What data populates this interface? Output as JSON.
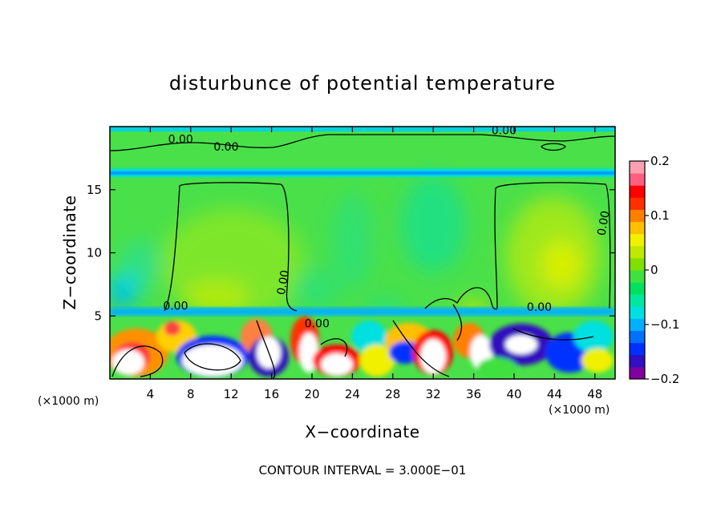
{
  "chart_data": {
    "type": "heatmap",
    "title": "disturbunce of potential temperature",
    "xlabel": "X−coordinate",
    "ylabel": "Z−coordinate",
    "x_unit_left": "(×1000 m)",
    "x_unit_right": "(×1000 m)",
    "xlim": [
      0,
      50
    ],
    "ylim": [
      0,
      20
    ],
    "x_ticks": [
      4,
      8,
      12,
      16,
      20,
      24,
      28,
      32,
      36,
      40,
      44,
      48
    ],
    "y_ticks": [
      5,
      10,
      15
    ],
    "colorbar": {
      "min": -0.2,
      "max": 0.2,
      "ticks": [
        {
          "value": 0.2,
          "label": "0.2"
        },
        {
          "value": 0.1,
          "label": "0.1"
        },
        {
          "value": 0,
          "label": "0"
        },
        {
          "value": -0.1,
          "label": "−0.1"
        },
        {
          "value": -0.2,
          "label": "−0.2"
        }
      ],
      "colors": [
        "#8000a0",
        "#3010c0",
        "#0030ff",
        "#0070ff",
        "#00b0ff",
        "#00e0e0",
        "#00e8a0",
        "#00e060",
        "#40e040",
        "#80e000",
        "#c0e800",
        "#f0f000",
        "#ffc000",
        "#ff8000",
        "#ff3000",
        "#ff0000",
        "#ff6080",
        "#ffa0b0"
      ]
    },
    "contour_labels": [
      {
        "x": 7,
        "z": 18.7,
        "text": "0.00"
      },
      {
        "x": 11.5,
        "z": 18.1,
        "text": "0.00"
      },
      {
        "x": 17.5,
        "z": 7.6,
        "text": "0.00",
        "rotate": true
      },
      {
        "x": 6.5,
        "z": 5.5,
        "text": "0.00"
      },
      {
        "x": 20.5,
        "z": 4.1,
        "text": "0.00"
      },
      {
        "x": 39,
        "z": 19.4,
        "text": "0.00"
      },
      {
        "x": 49.2,
        "z": 12.3,
        "text": "0.00",
        "rotate": true
      },
      {
        "x": 42.5,
        "z": 5.4,
        "text": "0.00"
      }
    ],
    "contour_interval_text": "CONTOUR INTERVAL = 3.000E−01"
  }
}
